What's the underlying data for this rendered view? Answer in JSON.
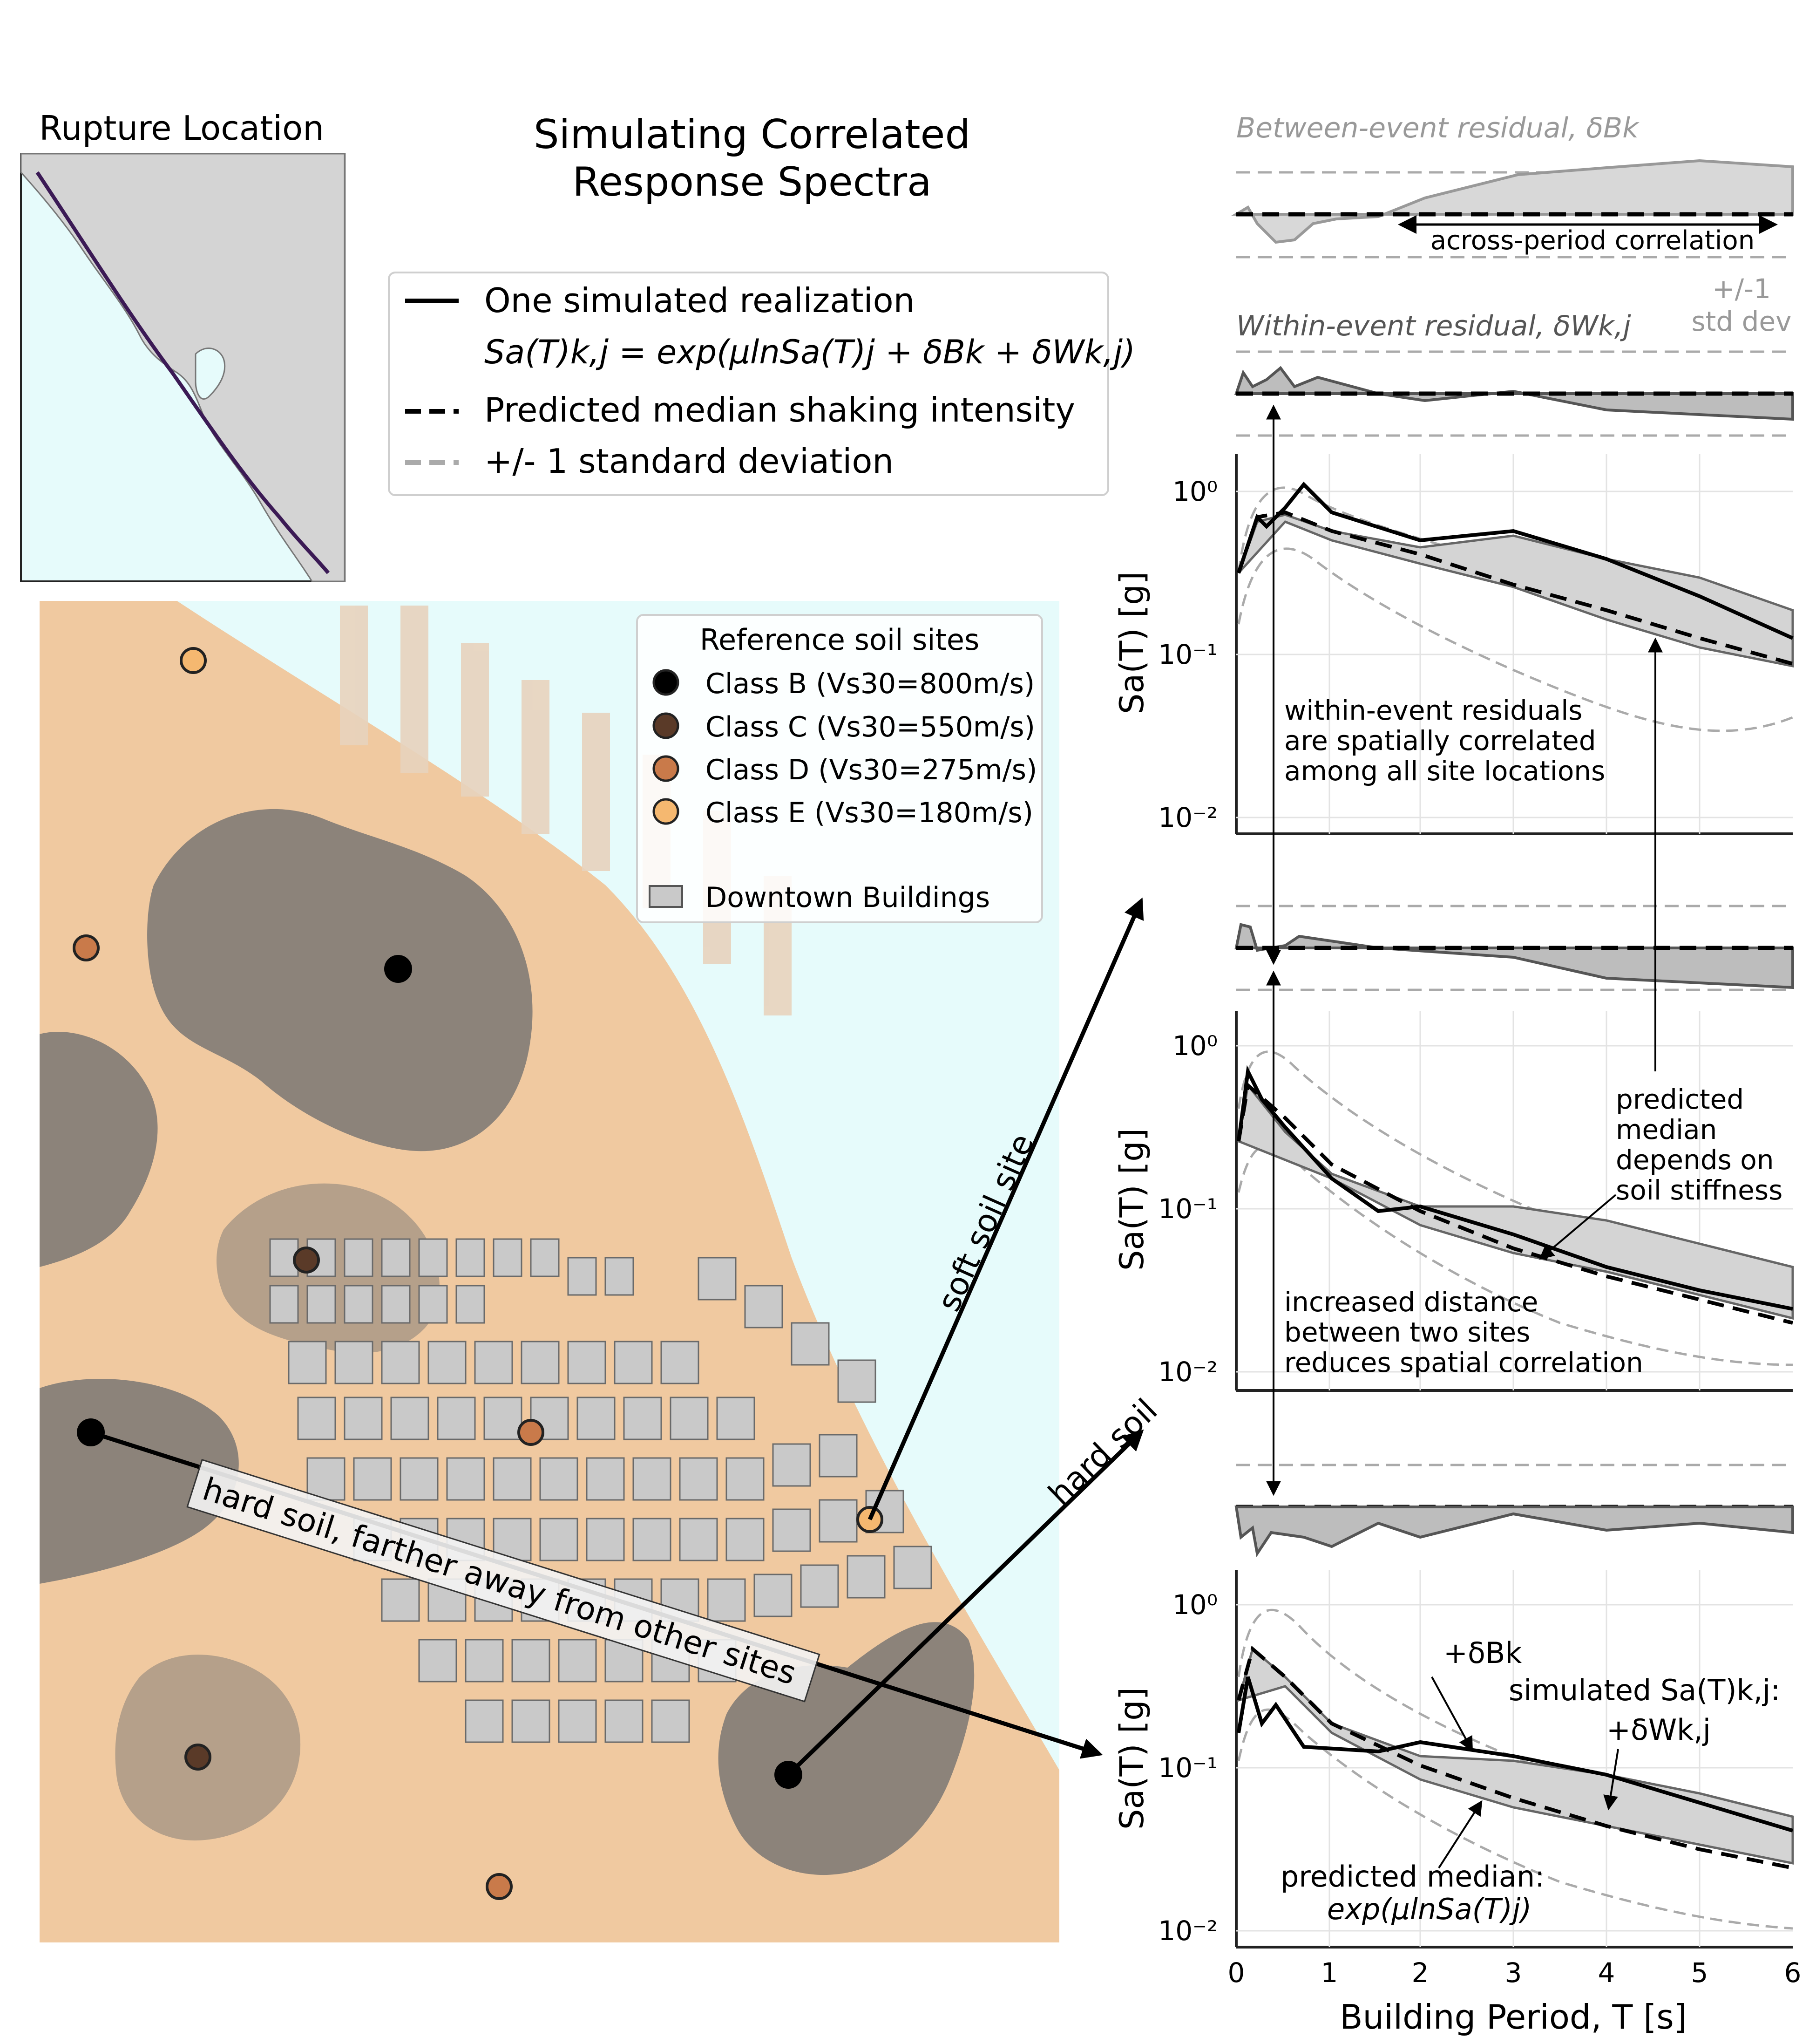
{
  "title": {
    "line1": "Simulating Correlated",
    "line2": "Response Spectra"
  },
  "inset": {
    "title": "Rupture Location"
  },
  "legend": {
    "realization": "One simulated realization",
    "formula": "Sa(T)k,j = exp(μlnSa(T)j + δBk + δWk,j)",
    "median": "Predicted median shaking intensity",
    "stddev": "+/- 1 standard deviation"
  },
  "map_legend": {
    "title": "Reference soil sites",
    "items": [
      {
        "label": "Class B (Vs30=800m/s)",
        "color": "#000000"
      },
      {
        "label": "Class C (Vs30=550m/s)",
        "color": "#5a3a28"
      },
      {
        "label": "Class D (Vs30=275m/s)",
        "color": "#c97a4a"
      },
      {
        "label": "Class E (Vs30=180m/s)",
        "color": "#f5b870"
      }
    ],
    "buildings": "Downtown Buildings"
  },
  "map_annotations": {
    "soft_soil": "soft soil site",
    "hard_soil": "hard soil",
    "hard_soil_far": "hard soil, farther away from other sites"
  },
  "residuals": {
    "between_label": "Between-event residual, δBk",
    "within_label": "Within-event residual, δWk,j",
    "across_period": "across-period correlation",
    "pm_std_1": "+/-1",
    "pm_std_2": "std dev"
  },
  "annotations": {
    "within_corr_1": "within-event residuals",
    "within_corr_2": "are spatially correlated",
    "within_corr_3": "among all site locations",
    "median_soil_1": "predicted",
    "median_soil_2": "median",
    "median_soil_3": "depends on",
    "median_soil_4": "soil stiffness",
    "distance_1": "increased distance",
    "distance_2": "between two sites",
    "distance_3": "reduces spatial correlation",
    "plus_dB": "+δBk",
    "simulated": "simulated Sa(T)k,j:",
    "plus_dW": "+δWk,j",
    "pred_median_1": "predicted median:",
    "pred_median_2": "exp(μlnSa(T)j)"
  },
  "axes": {
    "ylabel": "Sa(T) [g]",
    "xlabel": "Building Period, T [s]",
    "yticks": [
      "10⁰",
      "10⁻¹",
      "10⁻²"
    ],
    "xticks": [
      "0",
      "1",
      "2",
      "3",
      "4",
      "5",
      "6"
    ]
  },
  "colors": {
    "map_bg": "#e6fbfb",
    "soil_orange": "#f0c9a0",
    "rock_gray": "#6f6f6f",
    "building": "#c9c9c9",
    "fault": "#3b1a55"
  }
}
